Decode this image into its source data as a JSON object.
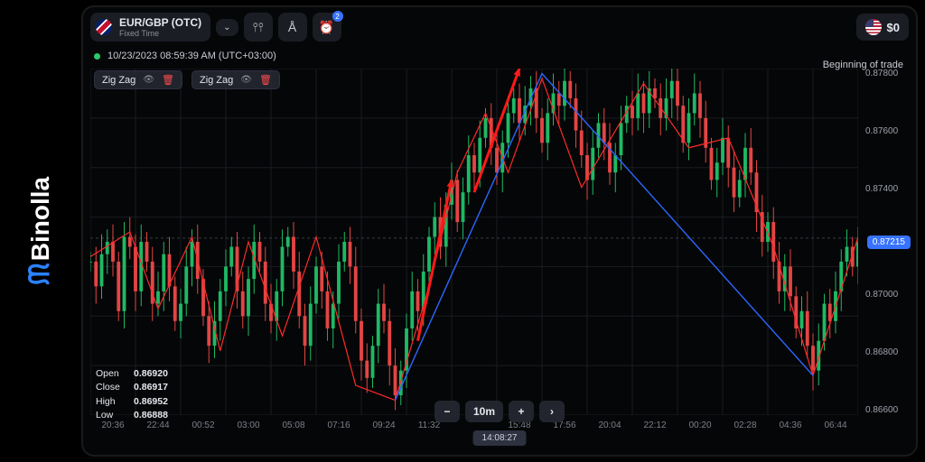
{
  "brand": {
    "name": "Binolla",
    "logo_color": "#2b82ff"
  },
  "asset": {
    "pair": "EUR/GBP (OTC)",
    "sub": "Fixed Time"
  },
  "toolbar": {
    "notif_badge": "2"
  },
  "balance": {
    "amount": "$0"
  },
  "timestamp": "10/23/2023  08:59:39 AM  (UTC+03:00)",
  "indicators": [
    {
      "name": "Zig Zag"
    },
    {
      "name": "Zig Zag"
    }
  ],
  "right_label": "Beginning of trade",
  "price_tag": "0.87215",
  "yaxis": {
    "min": 0.865,
    "max": 0.879,
    "labels": [
      "0.87800",
      "0.87600",
      "0.87400",
      "",
      "0.87000",
      "0.86800",
      "0.86600"
    ]
  },
  "xaxis": [
    "20:36",
    "22:44",
    "00:52",
    "03:00",
    "05:08",
    "07:16",
    "09:24",
    "11:32",
    "",
    "15:48",
    "17:56",
    "20:04",
    "22:12",
    "00:20",
    "02:28",
    "04:36",
    "06:44"
  ],
  "ohlc": {
    "open": "0.86920",
    "close": "0.86917",
    "high": "0.86952",
    "low": "0.86888"
  },
  "timeframe": {
    "minus": "−",
    "current": "10m",
    "plus": "+",
    "next": "›"
  },
  "clock": "14:08:27",
  "colors": {
    "up": "#1fb864",
    "down": "#e24544",
    "zigzag": "#ff2a2a",
    "blue": "#2b66ff",
    "grid": "#1a1c22",
    "bg": "#050607",
    "accent": "#3773ff",
    "text": "#e6e8ef",
    "muted": "#8b8f9a"
  },
  "chart": {
    "type": "candlestick",
    "width_units": 170,
    "y_domain": [
      0.865,
      0.879
    ],
    "candles_base": [
      {
        "o": 0.8712,
        "c": 0.8702,
        "h": 0.872,
        "l": 0.8695
      },
      {
        "o": 0.8702,
        "c": 0.8718,
        "h": 0.8725,
        "l": 0.8698
      },
      {
        "o": 0.8718,
        "c": 0.871,
        "h": 0.8724,
        "l": 0.8704
      },
      {
        "o": 0.871,
        "c": 0.8722,
        "h": 0.8728,
        "l": 0.8706
      },
      {
        "o": 0.8722,
        "c": 0.8715,
        "h": 0.8726,
        "l": 0.871
      },
      {
        "o": 0.8715,
        "c": 0.8695,
        "h": 0.8718,
        "l": 0.869
      },
      {
        "o": 0.8695,
        "c": 0.8705,
        "h": 0.871,
        "l": 0.869
      },
      {
        "o": 0.8705,
        "c": 0.8718,
        "h": 0.8722,
        "l": 0.87
      },
      {
        "o": 0.8718,
        "c": 0.8702,
        "h": 0.872,
        "l": 0.8698
      },
      {
        "o": 0.8702,
        "c": 0.869,
        "h": 0.8706,
        "l": 0.8685
      }
    ],
    "trend": [
      0.8712,
      0.8702,
      0.8715,
      0.872,
      0.8712,
      0.8692,
      0.8722,
      0.8718,
      0.87,
      0.872,
      0.8712,
      0.8695,
      0.87,
      0.8715,
      0.8702,
      0.8688,
      0.8695,
      0.871,
      0.872,
      0.8705,
      0.869,
      0.8678,
      0.8688,
      0.87,
      0.871,
      0.8718,
      0.87,
      0.869,
      0.8705,
      0.872,
      0.8712,
      0.8695,
      0.8688,
      0.87,
      0.8718,
      0.8722,
      0.8708,
      0.869,
      0.8678,
      0.8695,
      0.871,
      0.87,
      0.8685,
      0.8695,
      0.8712,
      0.872,
      0.871,
      0.8688,
      0.8672,
      0.8665,
      0.8678,
      0.8695,
      0.8688,
      0.867,
      0.8658,
      0.8668,
      0.8685,
      0.87,
      0.8692,
      0.8708,
      0.8722,
      0.873,
      0.8718,
      0.8735,
      0.8745,
      0.8728,
      0.874,
      0.8755,
      0.8748,
      0.8762,
      0.877,
      0.8758,
      0.8748,
      0.876,
      0.8772,
      0.8778,
      0.8768,
      0.8775,
      0.8782,
      0.877,
      0.876,
      0.8772,
      0.878,
      0.8775,
      0.8785,
      0.8778,
      0.8765,
      0.8755,
      0.8745,
      0.8758,
      0.8768,
      0.876,
      0.8748,
      0.8755,
      0.8768,
      0.8775,
      0.877,
      0.878,
      0.8772,
      0.8782,
      0.8778,
      0.877,
      0.8778,
      0.8785,
      0.8775,
      0.876,
      0.8772,
      0.878,
      0.877,
      0.8758,
      0.8745,
      0.8752,
      0.8762,
      0.875,
      0.8738,
      0.8745,
      0.8758,
      0.8748,
      0.8732,
      0.872,
      0.8728,
      0.8712,
      0.87,
      0.871,
      0.8698,
      0.8685,
      0.8692,
      0.8678,
      0.8668,
      0.868,
      0.8695,
      0.8688,
      0.87,
      0.8712,
      0.8718,
      0.871,
      0.872
    ],
    "zigzag_pivots": [
      [
        0,
        0.8714
      ],
      [
        7,
        0.8724
      ],
      [
        12,
        0.8693
      ],
      [
        18,
        0.8722
      ],
      [
        23,
        0.8676
      ],
      [
        28,
        0.872
      ],
      [
        34,
        0.8682
      ],
      [
        40,
        0.8722
      ],
      [
        47,
        0.8662
      ],
      [
        54,
        0.8656
      ],
      [
        60,
        0.8702
      ],
      [
        65,
        0.8748
      ],
      [
        70,
        0.8772
      ],
      [
        74,
        0.8748
      ],
      [
        80,
        0.8786
      ],
      [
        87,
        0.8742
      ],
      [
        98,
        0.8784
      ],
      [
        106,
        0.8758
      ],
      [
        113,
        0.8762
      ],
      [
        121,
        0.8718
      ],
      [
        128,
        0.8666
      ],
      [
        136,
        0.8722
      ]
    ],
    "blue_pivots": [
      [
        54,
        0.8656
      ],
      [
        80,
        0.8788
      ],
      [
        128,
        0.8666
      ]
    ],
    "red_arrows": [
      {
        "from": [
          58,
          0.868
        ],
        "to": [
          64,
          0.8745
        ]
      },
      {
        "from": [
          68,
          0.874
        ],
        "to": [
          76,
          0.879
        ]
      }
    ],
    "current_price_y": 0.87215
  }
}
